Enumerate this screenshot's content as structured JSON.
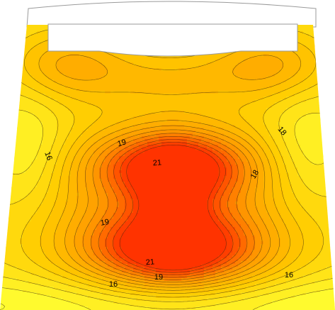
{
  "chart_data": {
    "type": "heatmap",
    "subtype": "filled-contour",
    "title": "",
    "xlabel": "",
    "ylabel": "",
    "legend": "none",
    "grid": false,
    "colormap": [
      "#ffff33",
      "#ffcc00",
      "#ff9900",
      "#ff3300"
    ],
    "value_range": [
      15,
      22
    ],
    "contour_interval": 0.5,
    "maxima": [
      {
        "label": "upper-center",
        "value": 21.6
      },
      {
        "label": "lower-center",
        "value": 22.0
      }
    ],
    "contour_labels": [
      {
        "text": "19",
        "value": 19
      },
      {
        "text": "21",
        "value": 21
      },
      {
        "text": "18",
        "value": 18
      },
      {
        "text": "16",
        "value": 16
      },
      {
        "text": "18",
        "value": 18
      },
      {
        "text": "19",
        "value": 19
      },
      {
        "text": "21",
        "value": 21
      },
      {
        "text": "19",
        "value": 19
      },
      {
        "text": "16",
        "value": 16
      },
      {
        "text": "16",
        "value": 16
      }
    ]
  }
}
